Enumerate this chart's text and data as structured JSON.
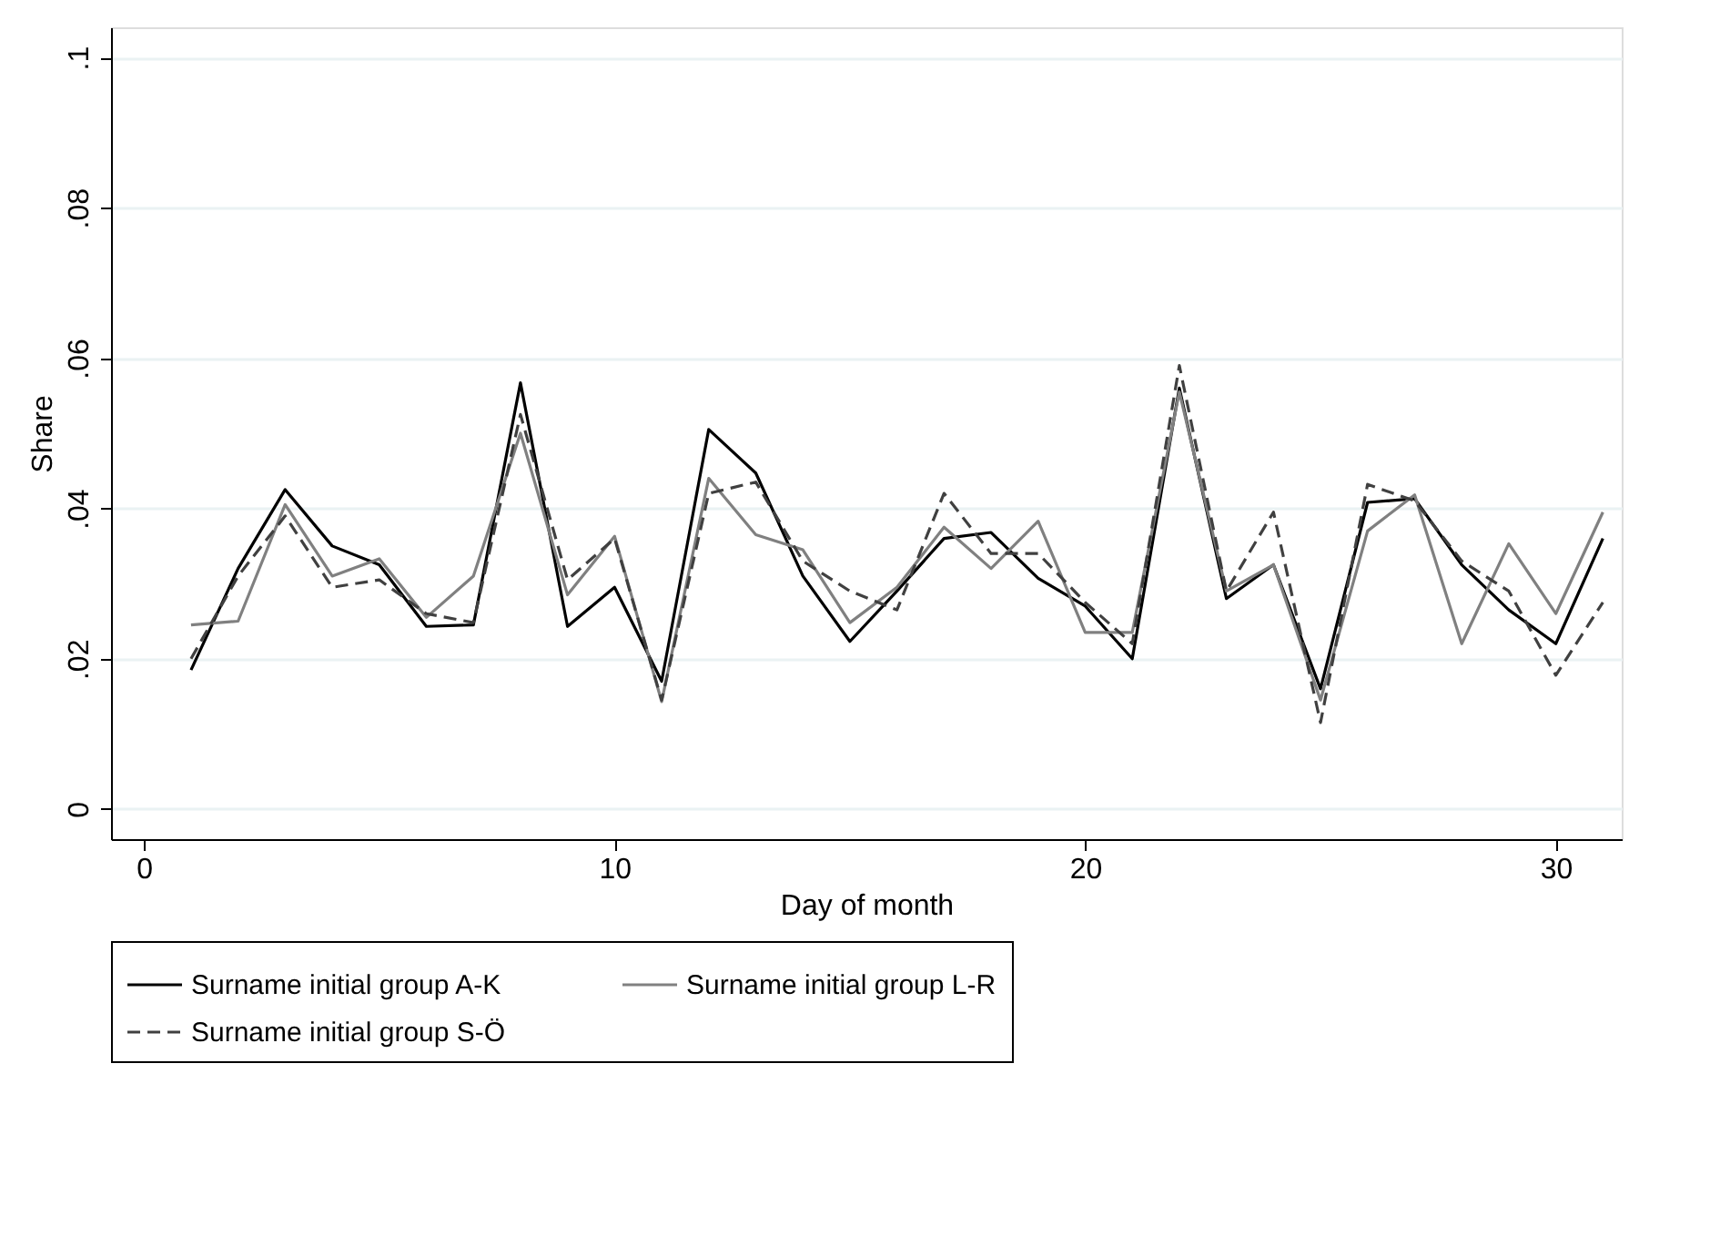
{
  "chart_data": {
    "type": "line",
    "xlabel": "Day of month",
    "ylabel": "Share",
    "x": [
      1,
      2,
      3,
      4,
      5,
      6,
      7,
      8,
      9,
      10,
      11,
      12,
      13,
      14,
      15,
      16,
      17,
      18,
      19,
      20,
      21,
      22,
      23,
      24,
      25,
      26,
      27,
      28,
      29,
      30,
      31
    ],
    "series": [
      {
        "name": "Surname initial group A-K",
        "color": "#000000",
        "line_style": "solid",
        "values": [
          0.0185,
          0.032,
          0.0425,
          0.035,
          0.0325,
          0.0243,
          0.0245,
          0.0567,
          0.0243,
          0.0295,
          0.017,
          0.0505,
          0.0447,
          0.031,
          0.0223,
          0.029,
          0.036,
          0.0368,
          0.0307,
          0.027,
          0.02,
          0.056,
          0.028,
          0.0325,
          0.016,
          0.0408,
          0.0413,
          0.0325,
          0.0265,
          0.022,
          0.036
        ]
      },
      {
        "name": "Surname initial group L-R",
        "color": "#808080",
        "line_style": "solid",
        "values": [
          0.0245,
          0.025,
          0.0405,
          0.031,
          0.0333,
          0.0255,
          0.031,
          0.05,
          0.0285,
          0.0363,
          0.0143,
          0.044,
          0.0365,
          0.0345,
          0.0248,
          0.0295,
          0.0375,
          0.032,
          0.0383,
          0.0235,
          0.0235,
          0.0555,
          0.029,
          0.0325,
          0.0145,
          0.037,
          0.0418,
          0.022,
          0.0353,
          0.026,
          0.0395
        ]
      },
      {
        "name": "Surname initial group S-Ö",
        "color": "#404040",
        "line_style": "dashed",
        "values": [
          0.02,
          0.031,
          0.039,
          0.0295,
          0.0305,
          0.026,
          0.0248,
          0.0525,
          0.0305,
          0.036,
          0.0145,
          0.042,
          0.0435,
          0.033,
          0.029,
          0.0265,
          0.042,
          0.034,
          0.034,
          0.0275,
          0.022,
          0.059,
          0.029,
          0.0395,
          0.0115,
          0.0432,
          0.041,
          0.033,
          0.029,
          0.0178,
          0.0275
        ]
      }
    ],
    "xlim": [
      -0.7,
      31.4
    ],
    "xticks": [
      0,
      10,
      20,
      30
    ],
    "ylim": [
      -0.004,
      0.104
    ],
    "yticks": [
      0,
      {
        "value": 0.02,
        "label": ".02"
      },
      {
        "value": 0.04,
        "label": ".04"
      },
      {
        "value": 0.06,
        "label": ".06"
      },
      {
        "value": 0.08,
        "label": ".08"
      },
      {
        "value": 0.1,
        "label": ".1"
      }
    ],
    "grid": "y",
    "legend": "bottom",
    "marker": "none"
  }
}
